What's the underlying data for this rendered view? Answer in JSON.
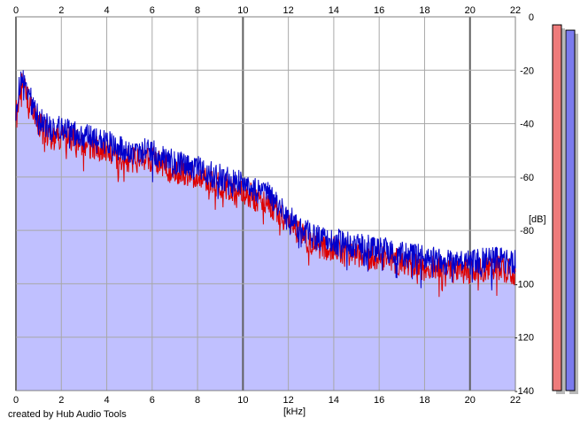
{
  "chart_data": {
    "type": "area",
    "x_unit_label": "[kHz]",
    "y_unit_label": "[dB]",
    "xlim": [
      0,
      22
    ],
    "ylim": [
      -140,
      0
    ],
    "x_ticks": [
      "0",
      "2",
      "4",
      "6",
      "8",
      "10",
      "12",
      "14",
      "16",
      "18",
      "20",
      "22"
    ],
    "y_ticks": [
      "0",
      "-20",
      "-40",
      "-60",
      "-80",
      "-100",
      "-120",
      "-140"
    ],
    "grid": true,
    "series": [
      {
        "color": "#0000cc",
        "x": [
          0,
          0.25,
          0.5,
          1,
          1.5,
          2,
          3,
          4,
          5,
          6,
          7,
          8,
          9,
          10,
          10.5,
          11,
          12,
          13,
          14,
          15,
          16,
          17,
          18,
          19,
          20,
          21,
          22
        ],
        "y": [
          -34,
          -22,
          -28,
          -38,
          -42,
          -42,
          -45,
          -47,
          -51,
          -50,
          -55,
          -57,
          -60,
          -62,
          -65,
          -66,
          -74,
          -82,
          -84,
          -86,
          -87,
          -89,
          -90,
          -92,
          -92,
          -91,
          -92
        ]
      },
      {
        "color": "#dd0000",
        "x": [
          0,
          0.25,
          0.5,
          1,
          1.5,
          2,
          3,
          4,
          5,
          6,
          7,
          8,
          9,
          10,
          10.5,
          11,
          12,
          13,
          14,
          15,
          16,
          17,
          18,
          19,
          20,
          21,
          22
        ],
        "y": [
          -36,
          -24,
          -30,
          -40,
          -45,
          -45,
          -48,
          -50,
          -54,
          -53,
          -58,
          -60,
          -63,
          -65,
          -68,
          -69,
          -77,
          -85,
          -87,
          -89,
          -90,
          -92,
          -94,
          -95,
          -95,
          -94,
          -96
        ]
      }
    ],
    "meters": [
      {
        "color": "#ee7b7b",
        "level_db": -3
      },
      {
        "color": "#7b7bee",
        "level_db": -5
      }
    ]
  },
  "footer": {
    "credit": "created by Hub Audio Tools"
  }
}
